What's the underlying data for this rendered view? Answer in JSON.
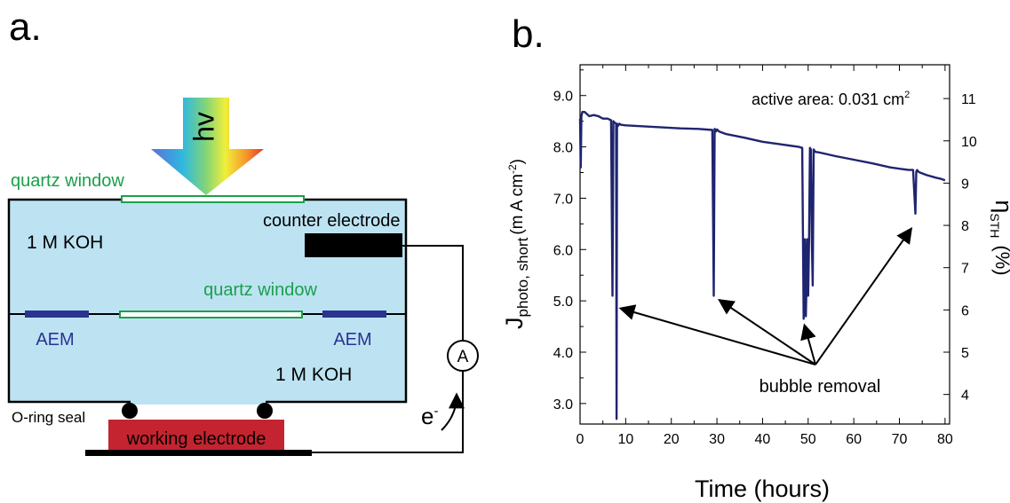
{
  "panel_a": {
    "label": "a.",
    "light_label": "hv",
    "top_window_label": "quartz window",
    "middle_window_label": "quartz window",
    "counter_electrode_label": "counter electrode",
    "electrolyte_top": "1 M KOH",
    "electrolyte_bottom": "1 M KOH",
    "membrane_left": "AEM",
    "membrane_right": "AEM",
    "ammeter_label": "A",
    "electron_label": "e",
    "electron_superscript": "-",
    "seal_label": "O-ring seal",
    "working_electrode_label": "working electrode",
    "colors": {
      "cell": "#bde3f3",
      "window": "#1aa04a",
      "window_text": "#1aa04a",
      "aem": "#2b3391",
      "working_electrode": "#c4242f",
      "counter_electrode": "#000000"
    }
  },
  "panel_b": {
    "label": "b.",
    "annotation_text": "active area:  0.031 cm",
    "annotation_superscript": "2",
    "bubble_label": "bubble removal"
  },
  "chart_data": {
    "type": "line",
    "xlabel": "Time (hours)",
    "ylabel_main": "J",
    "ylabel_sub": "photo, short",
    "ylabel_units": "(m A cm",
    "ylabel_units_sup": "-2",
    "ylabel_units_end": ")",
    "y2label_main": "η",
    "y2label_sub": "STH",
    "y2label_units": "(%)",
    "xlim": [
      0,
      81
    ],
    "ylim": [
      2.6,
      9.6
    ],
    "y2lim": [
      3.3,
      11.8
    ],
    "xticks": [
      0,
      10,
      20,
      30,
      40,
      50,
      60,
      70,
      80
    ],
    "yticks": [
      3.0,
      4.0,
      5.0,
      6.0,
      7.0,
      8.0,
      9.0
    ],
    "ytick_labels": [
      "3.0",
      "4.0",
      "5.0",
      "6.0",
      "7.0",
      "8.0",
      "9.0"
    ],
    "y2ticks": [
      4,
      5,
      6,
      7,
      8,
      9,
      10,
      11
    ],
    "line_color": "#1f2470",
    "series": [
      {
        "x": [
          0,
          0.15,
          0.3,
          0.5,
          1,
          2,
          3,
          4,
          5,
          6,
          6.8,
          7.1,
          7.3,
          7.5,
          7.9,
          8.0,
          8.1,
          8.2,
          8.4,
          8.6,
          9,
          10,
          14,
          18,
          22,
          26,
          29,
          29.3,
          29.5,
          29.6,
          29.8,
          30,
          30.5,
          32,
          36,
          40,
          44,
          48,
          48.7,
          49,
          49.3,
          49.5,
          49.8,
          50,
          50.2,
          50.4,
          50.6,
          50.8,
          51,
          51.2,
          51.4,
          51.7,
          52,
          53,
          56,
          60,
          64,
          68,
          72,
          73,
          73.5,
          73.7,
          73.9,
          74.1,
          74.5,
          76,
          78,
          79,
          80
        ],
        "y": [
          8.55,
          7.6,
          8.6,
          8.68,
          8.68,
          8.6,
          8.62,
          8.6,
          8.55,
          8.55,
          8.52,
          5.1,
          8.5,
          8.48,
          8.45,
          2.7,
          8.45,
          8.4,
          8.42,
          8.45,
          8.43,
          8.42,
          8.4,
          8.38,
          8.36,
          8.35,
          8.33,
          5.1,
          8.35,
          8.33,
          8.3,
          8.34,
          8.3,
          8.25,
          8.18,
          8.1,
          8.05,
          8.0,
          7.98,
          4.65,
          6.2,
          4.7,
          6.2,
          5.1,
          6.2,
          7.98,
          7.95,
          6.2,
          5.3,
          7.95,
          7.92,
          7.9,
          7.9,
          7.88,
          7.82,
          7.75,
          7.68,
          7.6,
          7.55,
          7.55,
          6.7,
          7.52,
          7.55,
          7.52,
          7.5,
          7.45,
          7.4,
          7.38,
          7.35
        ]
      }
    ]
  }
}
